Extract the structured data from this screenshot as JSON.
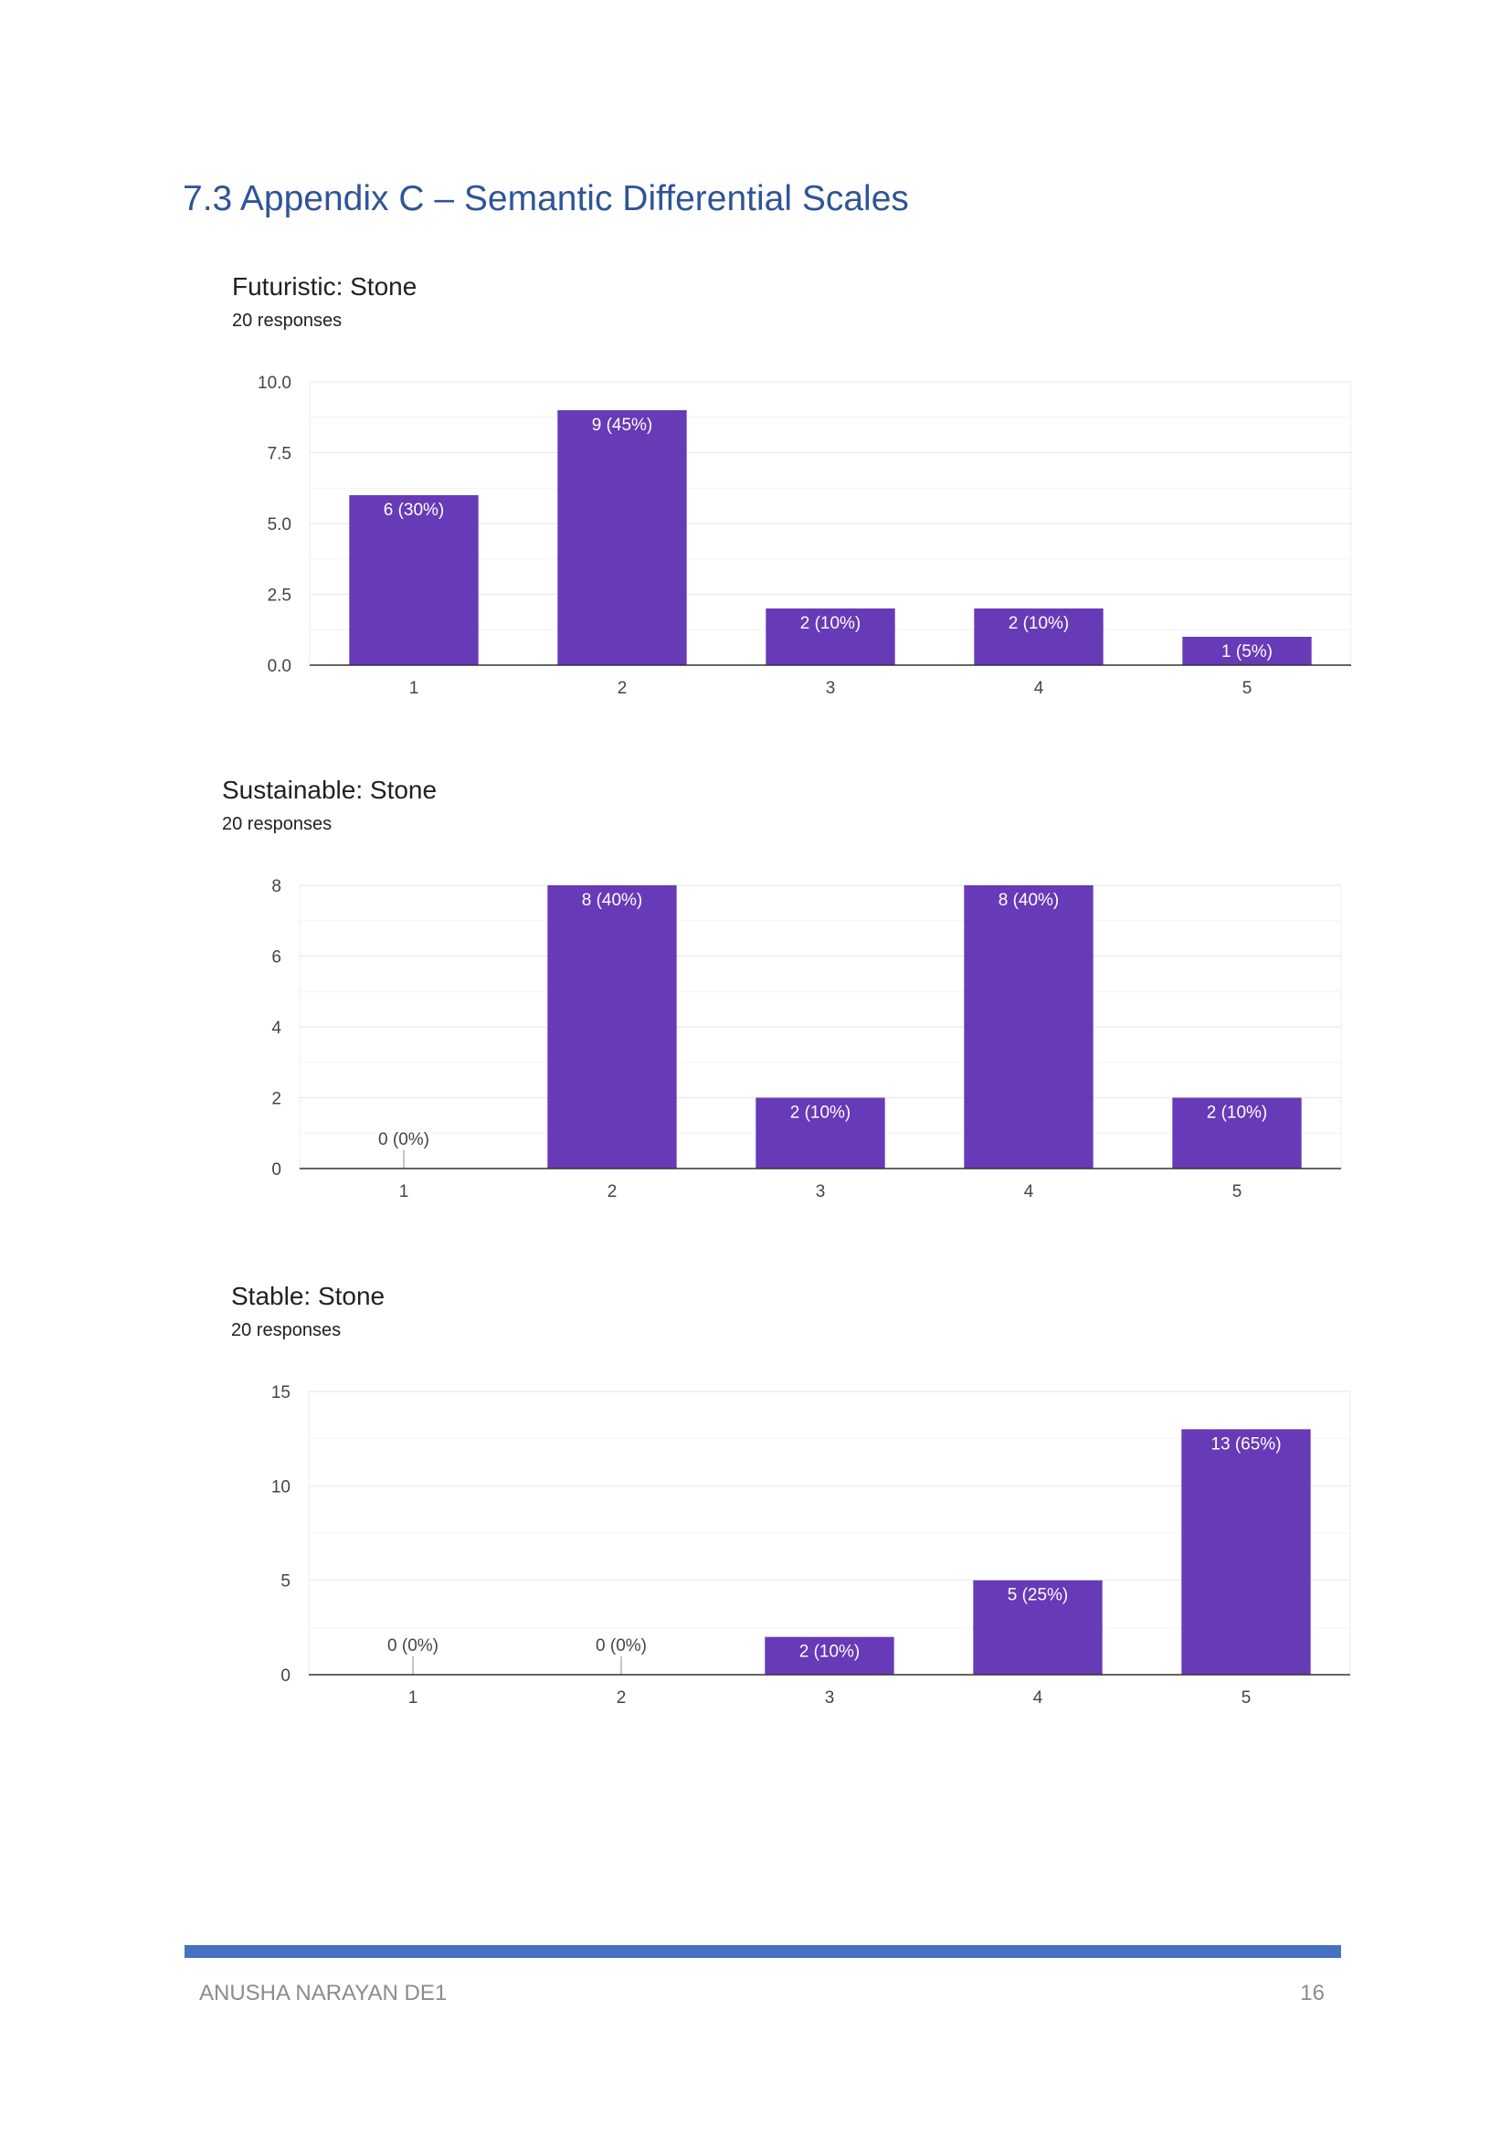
{
  "page": {
    "heading": "7.3 Appendix C – Semantic Differential Scales",
    "footer_author": "ANUSHA NARAYAN DE1",
    "footer_page_number": "16",
    "colors": {
      "bar": "#673ab7",
      "heading": "#2f5597",
      "footer_bar": "#4472c4"
    }
  },
  "chart_data": [
    {
      "type": "bar",
      "title": "Futuristic: Stone",
      "subtitle": "20 responses",
      "categories": [
        "1",
        "2",
        "3",
        "4",
        "5"
      ],
      "values": [
        6,
        9,
        2,
        2,
        1
      ],
      "data_labels": [
        "6 (30%)",
        "9 (45%)",
        "2 (10%)",
        "2 (10%)",
        "1 (5%)"
      ],
      "yticks": [
        "0.0",
        "2.5",
        "5.0",
        "7.5",
        "10.0"
      ],
      "ylim": [
        0,
        10
      ],
      "grid": true
    },
    {
      "type": "bar",
      "title": "Sustainable: Stone",
      "subtitle": "20 responses",
      "categories": [
        "1",
        "2",
        "3",
        "4",
        "5"
      ],
      "values": [
        0,
        8,
        2,
        8,
        2
      ],
      "data_labels": [
        "0 (0%)",
        "8 (40%)",
        "2 (10%)",
        "8 (40%)",
        "2 (10%)"
      ],
      "yticks": [
        "0",
        "2",
        "4",
        "6",
        "8"
      ],
      "ylim": [
        0,
        8
      ],
      "grid": true
    },
    {
      "type": "bar",
      "title": "Stable: Stone",
      "subtitle": "20 responses",
      "categories": [
        "1",
        "2",
        "3",
        "4",
        "5"
      ],
      "values": [
        0,
        0,
        2,
        5,
        13
      ],
      "data_labels": [
        "0 (0%)",
        "0 (0%)",
        "2 (10%)",
        "5 (25%)",
        "13 (65%)"
      ],
      "yticks": [
        "0",
        "5",
        "10",
        "15"
      ],
      "ylim": [
        0,
        15
      ],
      "grid": true
    }
  ]
}
